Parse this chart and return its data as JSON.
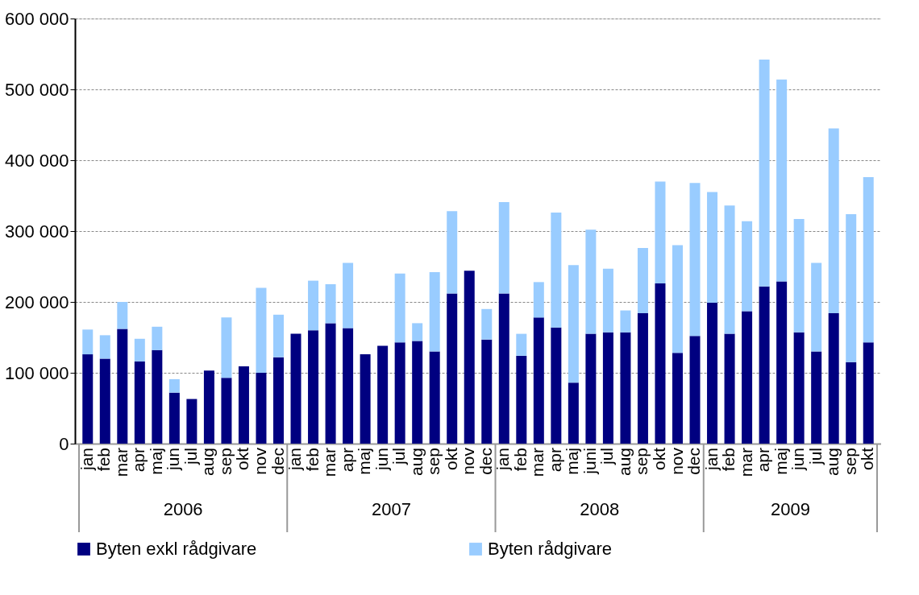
{
  "chart_data": {
    "type": "bar",
    "stacked": true,
    "categories": [
      "jan",
      "feb",
      "mar",
      "apr",
      "maj",
      "jun",
      "jul",
      "aug",
      "sep",
      "okt",
      "nov",
      "dec",
      "jan",
      "feb",
      "mar",
      "apr",
      "maj",
      "jun",
      "jul",
      "aug",
      "sep",
      "okt",
      "nov",
      "dec",
      "jan",
      "feb",
      "mar",
      "apr",
      "maj",
      "juni",
      "jul",
      "aug",
      "sep",
      "okt",
      "nov",
      "dec",
      "jan",
      "feb",
      "mar",
      "apr",
      "maj",
      "jun",
      "jul",
      "aug",
      "sep",
      "okt"
    ],
    "series": [
      {
        "name": "Byten exkl rådgivare",
        "color": "#000080",
        "values": [
          126000,
          120000,
          162000,
          116000,
          132000,
          72000,
          63000,
          103000,
          93000,
          109000,
          100000,
          122000,
          155000,
          160000,
          170000,
          163000,
          126000,
          138000,
          143000,
          145000,
          130000,
          212000,
          244000,
          147000,
          212000,
          124000,
          178000,
          164000,
          86000,
          155000,
          157000,
          157000,
          184000,
          226000,
          128000,
          152000,
          199000,
          155000,
          187000,
          222000,
          229000,
          157000,
          130000,
          184000,
          115000,
          143000
        ]
      },
      {
        "name": "Byten rådgivare",
        "color": "#99ccff",
        "values": [
          35000,
          33000,
          38000,
          32000,
          33000,
          19000,
          null,
          null,
          85000,
          null,
          120000,
          60000,
          null,
          70000,
          55000,
          92000,
          null,
          null,
          97000,
          25000,
          112000,
          116000,
          null,
          43000,
          129000,
          31000,
          50000,
          162000,
          166000,
          147000,
          90000,
          31000,
          92000,
          144000,
          152000,
          216000,
          156000,
          181000,
          127000,
          320000,
          285000,
          160000,
          125000,
          261000,
          209000,
          233000
        ]
      }
    ],
    "ylim": [
      0,
      600000
    ],
    "yticks": [
      {
        "value": 0,
        "label": "0"
      },
      {
        "value": 100000,
        "label": "100 000"
      },
      {
        "value": 200000,
        "label": "200 000"
      },
      {
        "value": 300000,
        "label": "300 000"
      },
      {
        "value": 400000,
        "label": "400 000"
      },
      {
        "value": 500000,
        "label": "500 000"
      },
      {
        "value": 600000,
        "label": "600 000"
      }
    ],
    "grid": "y",
    "legend": "bottom",
    "annotations": [
      "2006",
      "2007",
      "2008",
      "2009"
    ]
  }
}
